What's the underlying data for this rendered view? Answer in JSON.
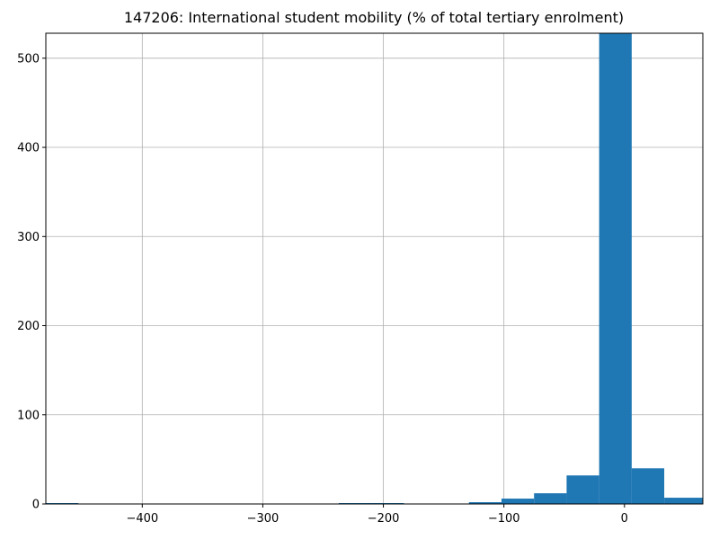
{
  "chart_data": {
    "type": "bar",
    "title": "147206: International student mobility (% of total tertiary enrolment)",
    "xlabel": "",
    "ylabel": "",
    "grid": true,
    "xlim": [
      -480,
      65
    ],
    "ylim": [
      0,
      528
    ],
    "color": "#1f77b4",
    "x_ticks": [
      {
        "value": -400,
        "label": "−400"
      },
      {
        "value": -300,
        "label": "−300"
      },
      {
        "value": -200,
        "label": "−200"
      },
      {
        "value": -100,
        "label": "−100"
      },
      {
        "value": 0,
        "label": "0"
      }
    ],
    "y_ticks": [
      {
        "value": 0,
        "label": "0"
      },
      {
        "value": 100,
        "label": "100"
      },
      {
        "value": 200,
        "label": "200"
      },
      {
        "value": 300,
        "label": "300"
      },
      {
        "value": 400,
        "label": "400"
      },
      {
        "value": 500,
        "label": "500"
      }
    ],
    "bins": [
      {
        "x0": -480,
        "x1": -453,
        "count": 1
      },
      {
        "x0": -453,
        "x1": -426,
        "count": 0
      },
      {
        "x0": -426,
        "x1": -399,
        "count": 0
      },
      {
        "x0": -399,
        "x1": -372,
        "count": 0
      },
      {
        "x0": -372,
        "x1": -345,
        "count": 0
      },
      {
        "x0": -345,
        "x1": -318,
        "count": 0
      },
      {
        "x0": -318,
        "x1": -291,
        "count": 0
      },
      {
        "x0": -291,
        "x1": -264,
        "count": 0
      },
      {
        "x0": -264,
        "x1": -237,
        "count": 0
      },
      {
        "x0": -237,
        "x1": -210,
        "count": 1
      },
      {
        "x0": -210,
        "x1": -183,
        "count": 1
      },
      {
        "x0": -183,
        "x1": -156,
        "count": 0
      },
      {
        "x0": -156,
        "x1": -129,
        "count": 0
      },
      {
        "x0": -129,
        "x1": -102,
        "count": 2
      },
      {
        "x0": -102,
        "x1": -75,
        "count": 6
      },
      {
        "x0": -75,
        "x1": -48,
        "count": 12
      },
      {
        "x0": -48,
        "x1": -21,
        "count": 32
      },
      {
        "x0": -21,
        "x1": 6,
        "count": 528
      },
      {
        "x0": 6,
        "x1": 33,
        "count": 40
      },
      {
        "x0": 33,
        "x1": 65,
        "count": 7
      }
    ]
  }
}
